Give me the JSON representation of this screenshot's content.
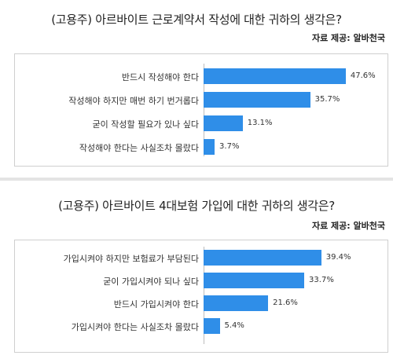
{
  "chart_data": [
    {
      "type": "bar",
      "orientation": "horizontal",
      "title": "(고용주) 아르바이트 근로계약서 작성에 대한 귀하의 생각은?",
      "source": "자료 제공: 알바천국",
      "categories": [
        "반드시 작성해야 한다",
        "작성해야 하지만 매번 하기 번거롭다",
        "굳이 작성할 필요가 있나 싶다",
        "작성해야 한다는 사실조차 몰랐다"
      ],
      "values": [
        47.6,
        35.7,
        13.1,
        3.7
      ],
      "value_labels": [
        "47.6%",
        "35.7%",
        "13.1%",
        "3.7%"
      ],
      "xlim": [
        0,
        50
      ],
      "grid": false,
      "bar_color": "#2f8ee8"
    },
    {
      "type": "bar",
      "orientation": "horizontal",
      "title": "(고용주) 아르바이트 4대보험 가입에 대한 귀하의 생각은?",
      "source": "자료 제공: 알바천국",
      "categories": [
        "가입시켜야 하지만 보험료가 부담된다",
        "굳이 가입시켜야 되나 싶다",
        "반드시 가입시켜야 한다",
        "가입시켜야 한다는 사실조차 몰랐다"
      ],
      "values": [
        39.4,
        33.7,
        21.6,
        5.4
      ],
      "value_labels": [
        "39.4%",
        "33.7%",
        "21.6%",
        "5.4%"
      ],
      "xlim": [
        0,
        50
      ],
      "grid": false,
      "bar_color": "#2f8ee8"
    }
  ]
}
